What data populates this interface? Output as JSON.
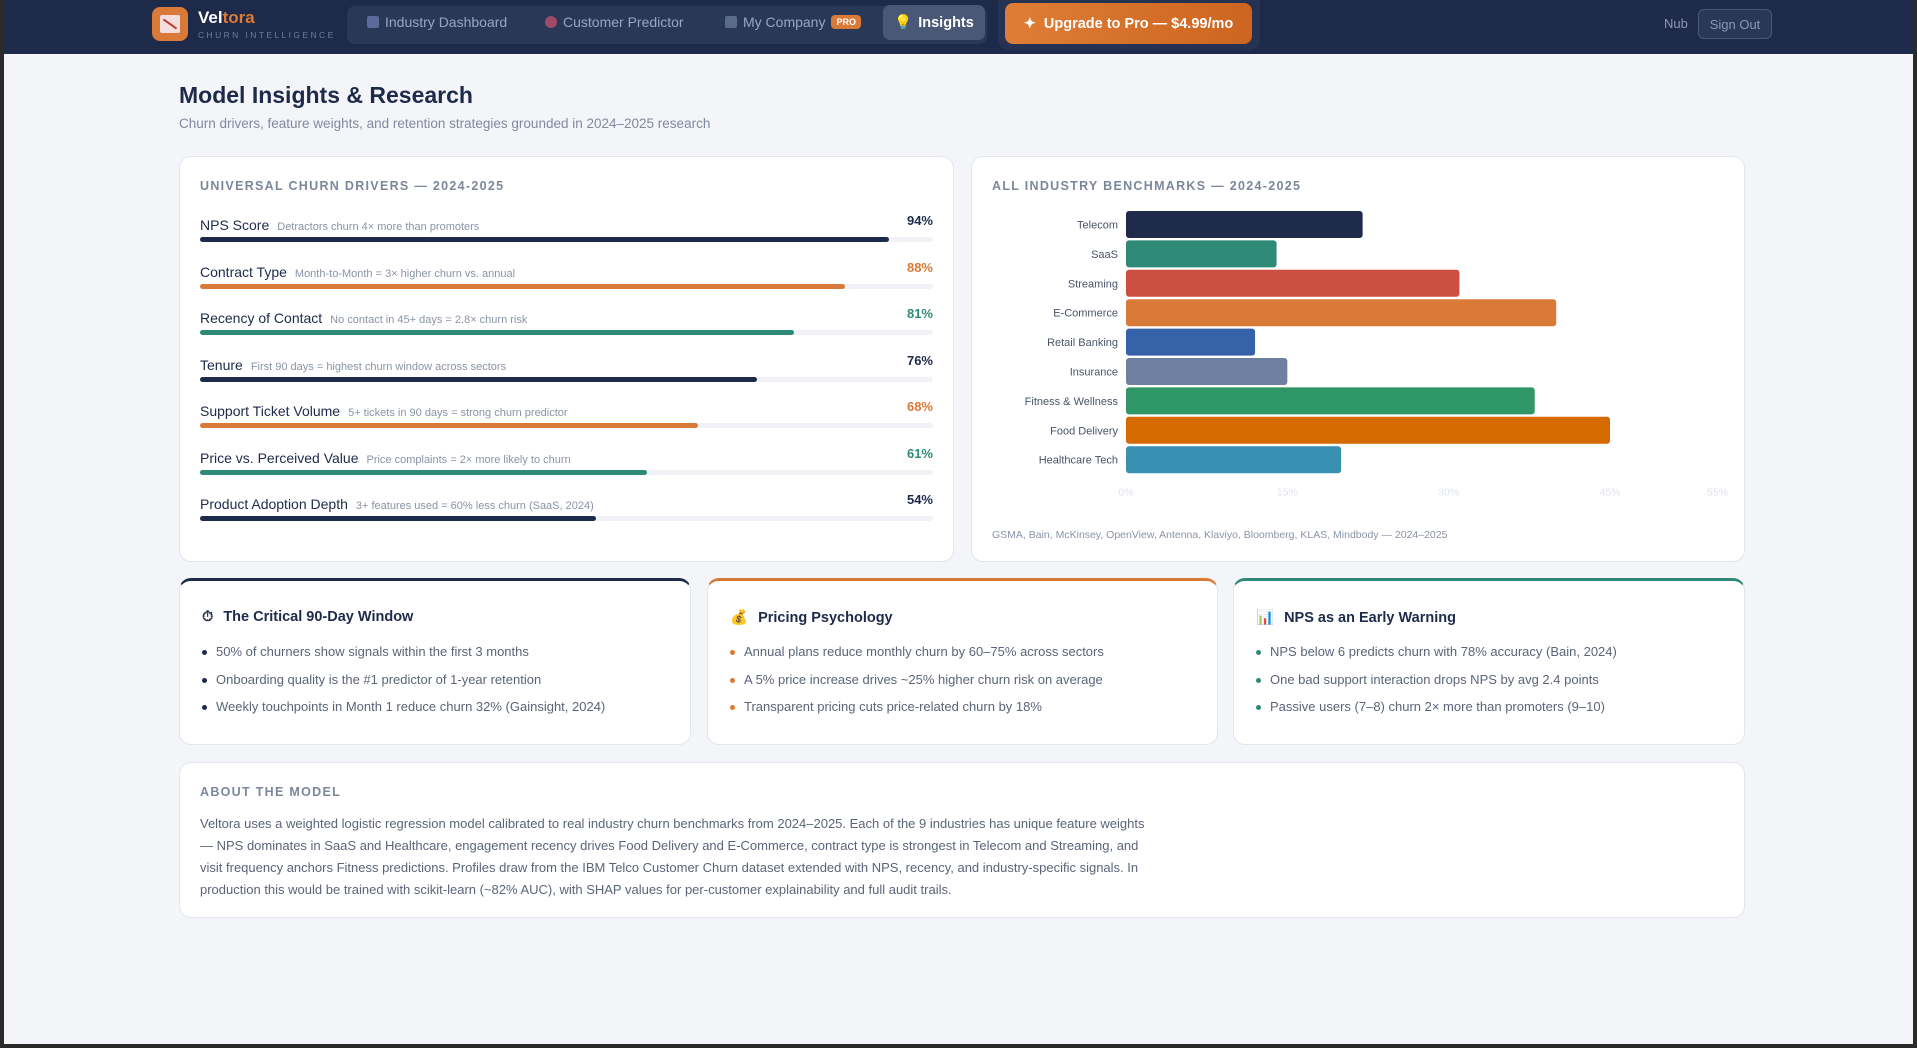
{
  "nav": {
    "brand_a": "Vel",
    "brand_b": "tora",
    "brand_sub": "CHURN INTELLIGENCE",
    "items": [
      {
        "label": "Industry Dashboard",
        "icon": "bar-chart-icon"
      },
      {
        "label": "Customer Predictor",
        "icon": "target-icon"
      },
      {
        "label": "My Company",
        "icon": "building-icon",
        "badge": "PRO"
      }
    ],
    "active": {
      "label": "Insights",
      "icon": "lightbulb-icon"
    },
    "upgrade": "Upgrade to Pro — $4.99/mo",
    "user": "Nub",
    "signout": "Sign Out"
  },
  "page": {
    "title": "Model Insights & Research",
    "subtitle": "Churn drivers, feature weights, and retention strategies grounded in 2024–2025 research"
  },
  "drivers": {
    "title": "UNIVERSAL CHURN DRIVERS — 2024-2025",
    "items": [
      {
        "name": "NPS Score",
        "desc": "Detractors churn 4× more than promoters",
        "pct": "94%",
        "value": 94,
        "color": "#1e2a4a"
      },
      {
        "name": "Contract Type",
        "desc": "Month-to-Month = 3× higher churn vs. annual",
        "pct": "88%",
        "value": 88,
        "color": "#d97a38"
      },
      {
        "name": "Recency of Contact",
        "desc": "No contact in 45+ days = 2.8× churn risk",
        "pct": "81%",
        "value": 81,
        "color": "#2e8a76"
      },
      {
        "name": "Tenure",
        "desc": "First 90 days = highest churn window across sectors",
        "pct": "76%",
        "value": 76,
        "color": "#1e2a4a"
      },
      {
        "name": "Support Ticket Volume",
        "desc": "5+ tickets in 90 days = strong churn predictor",
        "pct": "68%",
        "value": 68,
        "color": "#d97a38"
      },
      {
        "name": "Price vs. Perceived Value",
        "desc": "Price complaints = 2× more likely to churn",
        "pct": "61%",
        "value": 61,
        "color": "#2e8a76"
      },
      {
        "name": "Product Adoption Depth",
        "desc": "3+ features used = 60% less churn (SaaS, 2024)",
        "pct": "54%",
        "value": 54,
        "color": "#1e2a4a"
      }
    ]
  },
  "chart_data": {
    "type": "bar",
    "orientation": "horizontal",
    "title": "ALL INDUSTRY BENCHMARKS — 2024-2025",
    "categories": [
      "Telecom",
      "SaaS",
      "Streaming",
      "E-Commerce",
      "Retail Banking",
      "Insurance",
      "Fitness & Wellness",
      "Food Delivery",
      "Healthcare Tech"
    ],
    "values": [
      22,
      14,
      31,
      40,
      12,
      15,
      38,
      45,
      20
    ],
    "colors": [
      "#1f2b4b",
      "#2e8a76",
      "#cd4f41",
      "#d97a38",
      "#3662aa",
      "#6f7fa0",
      "#2f9667",
      "#d46a00",
      "#3890b3"
    ],
    "xticks": [
      "0%",
      "15%",
      "30%",
      "45%",
      "55%"
    ],
    "xtick_values": [
      0,
      15,
      30,
      45,
      55
    ],
    "xlim": [
      0,
      55
    ],
    "note": "GSMA, Bain, McKinsey, OpenView, Antenna, Klaviyo, Bloomberg, KLAS, Mindbody — 2024–2025"
  },
  "insights": [
    {
      "title": "The Critical 90-Day Window",
      "icon": "stopwatch-icon",
      "color": "#1e2a4a",
      "items": [
        "50% of churners show signals within the first 3 months",
        "Onboarding quality is the #1 predictor of 1-year retention",
        "Weekly touchpoints in Month 1 reduce churn 32% (Gainsight, 2024)"
      ]
    },
    {
      "title": "Pricing Psychology",
      "icon": "money-bag-icon",
      "color": "#d97a38",
      "items": [
        "Annual plans reduce monthly churn by 60–75% across sectors",
        "A 5% price increase drives ~25% higher churn risk on average",
        "Transparent pricing cuts price-related churn by 18%"
      ]
    },
    {
      "title": "NPS as an Early Warning",
      "icon": "bar-chart-icon",
      "color": "#2e8a76",
      "items": [
        "NPS below 6 predicts churn with 78% accuracy (Bain, 2024)",
        "One bad support interaction drops NPS by avg 2.4 points",
        "Passive users (7–8) churn 2× more than promoters (9–10)"
      ]
    }
  ],
  "about": {
    "title": "ABOUT THE MODEL",
    "text": "Veltora uses a weighted logistic regression model calibrated to real industry churn benchmarks from 2024–2025. Each of the 9 industries has unique feature weights — NPS dominates in SaaS and Healthcare, engagement recency drives Food Delivery and E-Commerce, contract type is strongest in Telecom and Streaming, and visit frequency anchors Fitness predictions. Profiles draw from the IBM Telco Customer Churn dataset extended with NPS, recency, and industry-specific signals. In production this would be trained with scikit-learn (~82% AUC), with SHAP values for per-customer explainability and full audit trails."
  }
}
